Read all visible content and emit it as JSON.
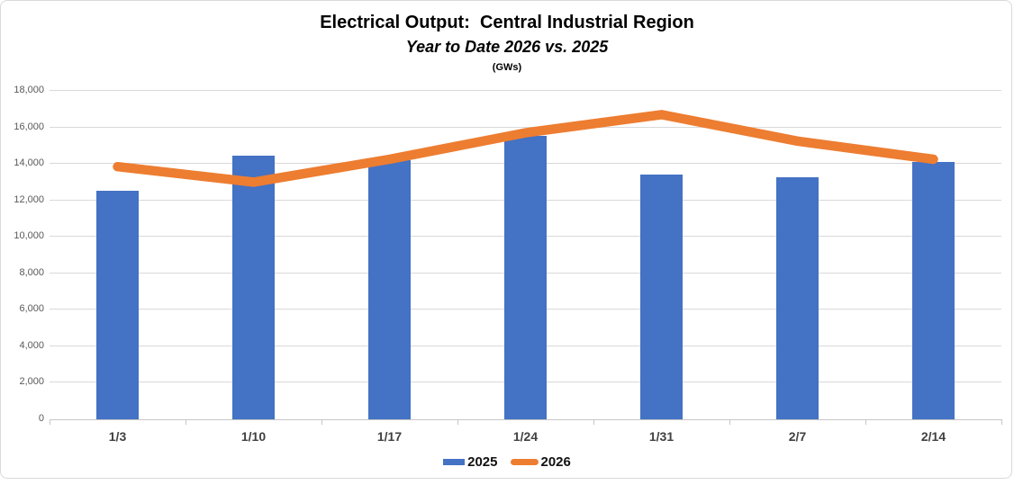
{
  "chart_data": {
    "type": "bar+line combo",
    "title": "Electrical Output:  Central Industrial Region",
    "subtitle": "Year to Date 2026 vs. 2025",
    "units_label": "(GWs)",
    "categories": [
      "1/3",
      "1/10",
      "1/17",
      "1/24",
      "1/31",
      "2/7",
      "2/14"
    ],
    "series": [
      {
        "name": "2025",
        "type": "bar",
        "color": "#4472C4",
        "values": [
          12550,
          14450,
          14200,
          15550,
          13400,
          13250,
          14100
        ]
      },
      {
        "name": "2026",
        "type": "line",
        "color": "#ED7D31",
        "values": [
          13850,
          13000,
          14250,
          15700,
          16700,
          15250,
          14250
        ]
      }
    ],
    "ylim": [
      0,
      18000
    ],
    "ytick_interval": 2000,
    "ytick_labels": [
      "0",
      "2,000",
      "4,000",
      "6,000",
      "8,000",
      "10,000",
      "12,000",
      "14,000",
      "16,000",
      "18,000"
    ],
    "grid": "horizontal gridlines on",
    "legend_position": "bottom"
  },
  "colors": {
    "bar": "#4472C4",
    "line": "#ED7D31",
    "gridline": "#d9d9d9",
    "axis": "#c6c6c6",
    "y_label": "#595959",
    "x_label": "#404040",
    "title_text": "#000000",
    "frame_border": "#d9d9d9",
    "background": "#ffffff"
  }
}
